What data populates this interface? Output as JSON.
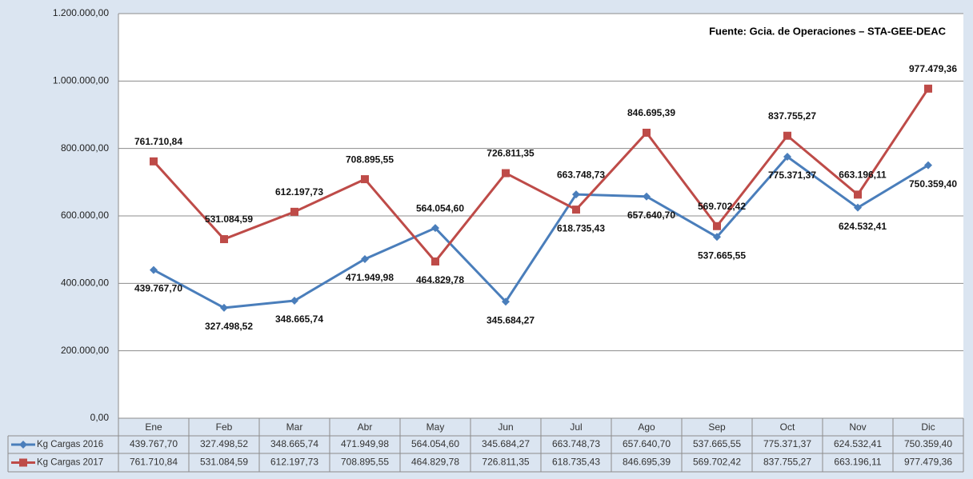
{
  "chart_data": {
    "type": "line",
    "annotation": "Fuente: Gcia. de Operaciones – STA-GEE-DEAC",
    "categories": [
      "Ene",
      "Feb",
      "Mar",
      "Abr",
      "May",
      "Jun",
      "Jul",
      "Ago",
      "Sep",
      "Oct",
      "Nov",
      "Dic"
    ],
    "series": [
      {
        "name": "Kg Cargas 2016",
        "color": "#4a7ebb",
        "marker": "diamond",
        "values": [
          439767.7,
          327498.52,
          348665.74,
          471949.98,
          564054.6,
          345684.27,
          663748.73,
          657640.7,
          537665.55,
          775371.37,
          624532.41,
          750359.4
        ],
        "value_labels": [
          "439.767,70",
          "327.498,52",
          "348.665,74",
          "471.949,98",
          "564.054,60",
          "345.684,27",
          "663.748,73",
          "657.640,70",
          "537.665,55",
          "775.371,37",
          "624.532,41",
          "750.359,40"
        ]
      },
      {
        "name": "Kg Cargas 2017",
        "color": "#be4b48",
        "marker": "square",
        "values": [
          761710.84,
          531084.59,
          612197.73,
          708895.55,
          464829.78,
          726811.35,
          618735.43,
          846695.39,
          569702.42,
          837755.27,
          663196.11,
          977479.36
        ],
        "value_labels": [
          "761.710,84",
          "531.084,59",
          "612.197,73",
          "708.895,55",
          "464.829,78",
          "726.811,35",
          "618.735,43",
          "846.695,39",
          "569.702,42",
          "837.755,27",
          "663.196,11",
          "977.479,36"
        ]
      }
    ],
    "ylim": [
      0,
      1200000
    ],
    "yticks": [
      {
        "value": 0,
        "label": "0,00"
      },
      {
        "value": 200000,
        "label": "200.000,00"
      },
      {
        "value": 400000,
        "label": "400.000,00"
      },
      {
        "value": 600000,
        "label": "600.000,00"
      },
      {
        "value": 800000,
        "label": "800.000,00"
      },
      {
        "value": 1000000,
        "label": "1.000.000,00"
      },
      {
        "value": 1200000,
        "label": "1.200.000,00"
      }
    ],
    "grid": true
  }
}
